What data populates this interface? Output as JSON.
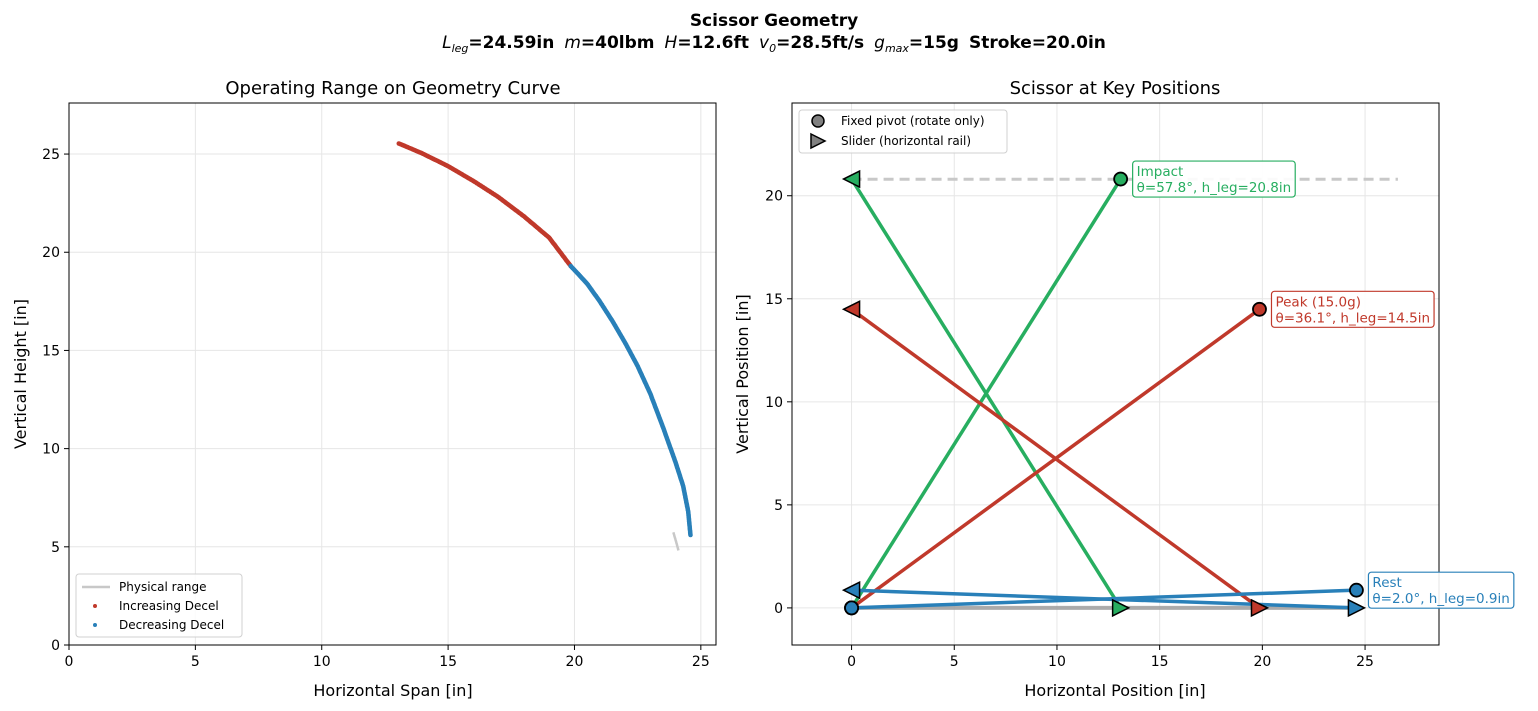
{
  "figure": {
    "suptitle_line1": "Scissor Geometry",
    "suptitle_line2": {
      "l_sym": "L",
      "l_sub": "leg",
      "l_val": "=24.59in",
      "m_sym": "m",
      "m_val": "=40lbm",
      "h_sym": "H",
      "h_val": "=12.6ft",
      "v_sym": "v",
      "v_sub": "0",
      "v_val": "=28.5ft/s",
      "g_sym": "g",
      "g_sub": "max",
      "g_val": "=15g",
      "stroke": "Stroke=20.0in"
    }
  },
  "chart_data": [
    {
      "type": "line",
      "title": "Operating Range on Geometry Curve",
      "xlabel": "Horizontal Span [in]",
      "ylabel": "Vertical Height [in]",
      "xlim": [
        0,
        25.6
      ],
      "ylim": [
        0,
        27.6
      ],
      "xticks": [
        0,
        5,
        10,
        15,
        20,
        25
      ],
      "yticks": [
        0,
        5,
        10,
        15,
        20,
        25
      ],
      "grid": true,
      "legend_position": "lower-left",
      "L_leg": 24.59,
      "series": [
        {
          "name": "Physical range",
          "style": "line",
          "color": "#c8c8c8",
          "theta_deg_range": [
            11.3,
            13.5
          ]
        },
        {
          "name": "Increasing Decel",
          "style": "points",
          "color": "#c0392b",
          "x": [
            13.05,
            14.0,
            15.0,
            16.0,
            17.0,
            18.0,
            19.0,
            19.85
          ],
          "y": [
            25.54,
            25.02,
            24.38,
            23.63,
            22.8,
            21.83,
            20.74,
            19.3
          ]
        },
        {
          "name": "Decreasing Decel",
          "style": "points",
          "color": "#2980b9",
          "x": [
            19.85,
            20.5,
            21.0,
            21.5,
            22.0,
            22.5,
            23.0,
            23.5,
            24.0,
            24.3,
            24.5,
            24.59
          ],
          "y": [
            19.3,
            18.4,
            17.5,
            16.5,
            15.4,
            14.2,
            12.8,
            11.1,
            9.3,
            8.1,
            6.8,
            5.6
          ]
        }
      ]
    },
    {
      "type": "scatter",
      "title": "Scissor at Key Positions",
      "xlabel": "Horizontal Position [in]",
      "ylabel": "Vertical Position [in]",
      "xlim": [
        -2.9,
        28.6
      ],
      "ylim": [
        -1.8,
        24.5
      ],
      "xticks": [
        0,
        5,
        10,
        15,
        20,
        25
      ],
      "yticks": [
        0,
        5,
        10,
        15,
        20
      ],
      "grid": true,
      "legend_position": "upper-left",
      "legend": [
        {
          "name": "Fixed pivot (rotate only)",
          "marker": "circle"
        },
        {
          "name": "Slider (horizontal rail)",
          "marker": "triangle-right"
        }
      ],
      "impact_line": {
        "y": 20.8,
        "x": [
          0,
          26.6
        ],
        "color": "#c8c8c8"
      },
      "positions": [
        {
          "name": "Rest",
          "color": "#2980b9",
          "theta_deg": 2.0,
          "h_leg": 0.9,
          "label": "Rest",
          "detail": "θ=2.0°, h_leg=0.9in",
          "pin_x": 24.58,
          "top_y": 0.86,
          "bottom_y": 0.0
        },
        {
          "name": "Peak",
          "color": "#c0392b",
          "theta_deg": 36.1,
          "h_leg": 14.5,
          "label": "Peak (15.0g)",
          "detail": "θ=36.1°, h_leg=14.5in",
          "pin_x": 19.86,
          "top_y": 14.49,
          "bottom_y": 0.0
        },
        {
          "name": "Impact",
          "color": "#27ae60",
          "theta_deg": 57.8,
          "h_leg": 20.8,
          "label": "Impact",
          "detail": "θ=57.8°, h_leg=20.8in",
          "pin_x": 13.1,
          "top_y": 20.81,
          "bottom_y": 0.0
        }
      ],
      "base_rail": {
        "x": [
          0,
          24.6
        ],
        "y": 0.0,
        "color": "#999999"
      }
    }
  ]
}
